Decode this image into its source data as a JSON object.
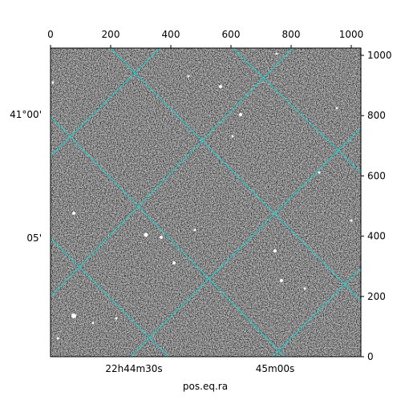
{
  "chart_data": {
    "type": "image",
    "xlabel": "pos.eq.ra",
    "xlim": [
      0,
      1032
    ],
    "xticks": [
      0,
      200,
      400,
      600,
      800,
      1000
    ],
    "ylim": [
      0,
      1024
    ],
    "yticks": [
      0,
      200,
      400,
      600,
      800,
      1000
    ],
    "ra_ticks": [
      "22h44m30s",
      "45m00s"
    ],
    "dec_ticks": [
      "41°00'",
      "05'"
    ],
    "grid_color": "#00e5e5"
  }
}
